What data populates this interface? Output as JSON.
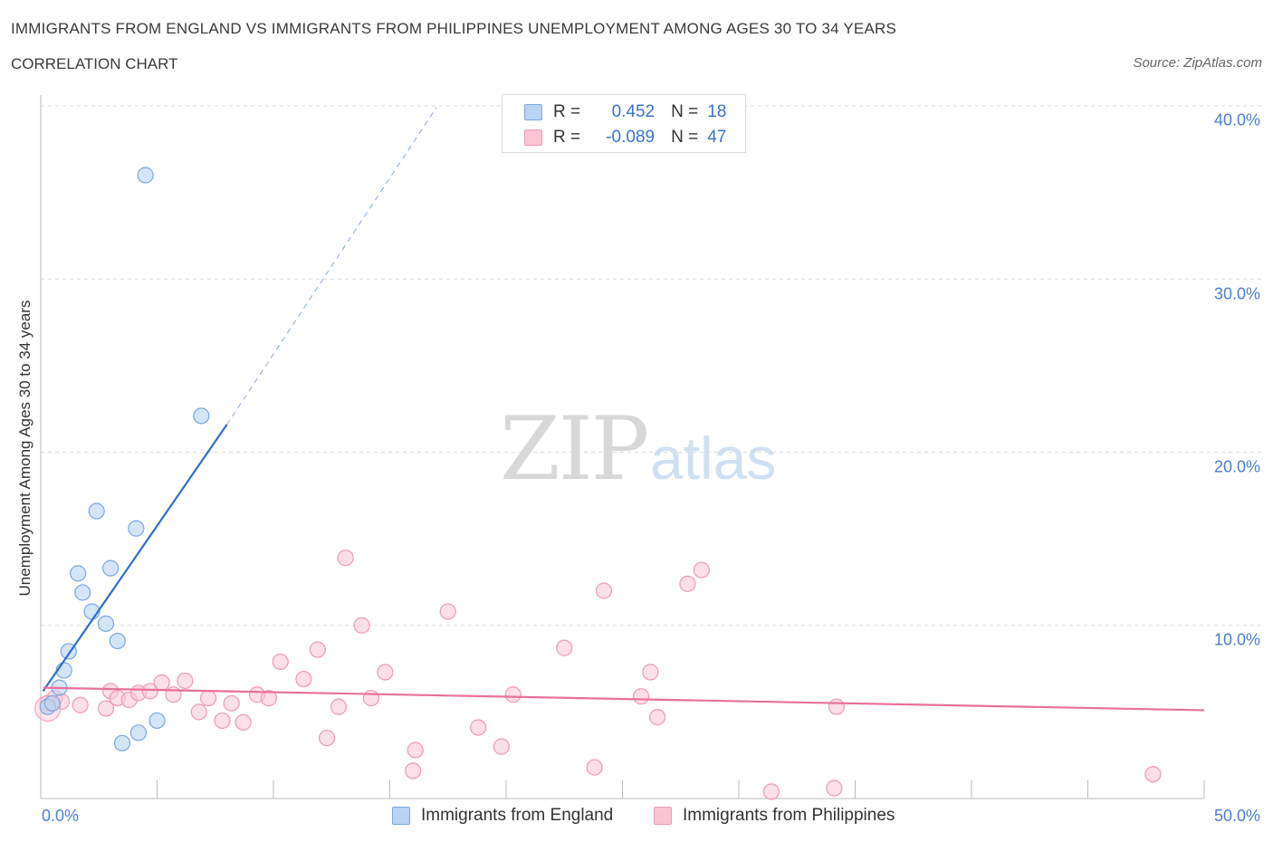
{
  "header": {
    "title": "IMMIGRANTS FROM ENGLAND VS IMMIGRANTS FROM PHILIPPINES UNEMPLOYMENT AMONG AGES 30 TO 34 YEARS",
    "subtitle": "CORRELATION CHART",
    "source": "Source: ZipAtlas.com"
  },
  "watermark": {
    "zip": "ZIP",
    "atlas": "atlas"
  },
  "legend": {
    "england": {
      "r_label": "R =",
      "r_value": "0.452",
      "n_label": "N =",
      "n_value": "18"
    },
    "philippines": {
      "r_label": "R =",
      "r_value": "-0.089",
      "n_label": "N =",
      "n_value": "47"
    }
  },
  "colors": {
    "england_fill": "#b9d3f3",
    "england_stroke": "#7aa7e0",
    "england_line": "#2f6fcf",
    "philippines_fill": "#f9c5d5",
    "philippines_stroke": "#ee9ab4",
    "philippines_line": "#e8709a",
    "grid": "#dcdcdc",
    "tick_text": "#4a7fd0"
  },
  "chart_data": {
    "type": "scatter",
    "title": "IMMIGRANTS FROM ENGLAND VS IMMIGRANTS FROM PHILIPPINES UNEMPLOYMENT AMONG AGES 30 TO 34 YEARS",
    "subtitle": "CORRELATION CHART",
    "xlabel": "",
    "ylabel": "Unemployment Among Ages 30 to 34 years",
    "xlim": [
      0,
      50
    ],
    "ylim": [
      0,
      40
    ],
    "x_tick_labels": [
      "0.0%",
      "50.0%"
    ],
    "y_ticks": [
      10,
      20,
      30,
      40
    ],
    "y_tick_labels": [
      "10.0%",
      "20.0%",
      "30.0%",
      "40.0%"
    ],
    "grid": true,
    "legend_position": "top-center",
    "series": [
      {
        "name": "Immigrants from England",
        "r": 0.452,
        "n": 18,
        "points": [
          [
            0.3,
            5.3
          ],
          [
            0.5,
            5.5
          ],
          [
            0.8,
            6.4
          ],
          [
            1.0,
            7.4
          ],
          [
            1.2,
            8.5
          ],
          [
            1.6,
            13.0
          ],
          [
            1.8,
            11.9
          ],
          [
            2.2,
            10.8
          ],
          [
            2.4,
            16.6
          ],
          [
            2.8,
            10.1
          ],
          [
            3.0,
            13.3
          ],
          [
            3.3,
            9.1
          ],
          [
            3.5,
            3.2
          ],
          [
            4.1,
            15.6
          ],
          [
            4.2,
            3.8
          ],
          [
            4.5,
            36.0
          ],
          [
            5.0,
            4.5
          ],
          [
            6.9,
            22.1
          ]
        ],
        "trend": {
          "x0": 0.1,
          "y0": 6.2,
          "x1": 8.0,
          "y1": 21.6,
          "dash_x1": 17.0,
          "dash_y1": 39.9
        }
      },
      {
        "name": "Immigrants from Philippines",
        "r": -0.089,
        "n": 47,
        "points": [
          [
            0.3,
            5.5
          ],
          [
            0.6,
            5.8
          ],
          [
            0.9,
            5.6
          ],
          [
            1.7,
            5.4
          ],
          [
            2.8,
            5.2
          ],
          [
            3.0,
            6.2
          ],
          [
            3.3,
            5.8
          ],
          [
            3.8,
            5.7
          ],
          [
            4.2,
            6.1
          ],
          [
            4.7,
            6.2
          ],
          [
            5.2,
            6.7
          ],
          [
            5.7,
            6.0
          ],
          [
            6.2,
            6.8
          ],
          [
            6.8,
            5.0
          ],
          [
            7.2,
            5.8
          ],
          [
            7.8,
            4.5
          ],
          [
            8.2,
            5.5
          ],
          [
            8.7,
            4.4
          ],
          [
            9.3,
            6.0
          ],
          [
            9.8,
            5.8
          ],
          [
            10.3,
            7.9
          ],
          [
            11.3,
            6.9
          ],
          [
            11.9,
            8.6
          ],
          [
            12.3,
            3.5
          ],
          [
            12.8,
            5.3
          ],
          [
            13.1,
            13.9
          ],
          [
            13.8,
            10.0
          ],
          [
            14.2,
            5.8
          ],
          [
            14.8,
            7.3
          ],
          [
            16.1,
            2.8
          ],
          [
            16.0,
            1.6
          ],
          [
            17.5,
            10.8
          ],
          [
            18.8,
            4.1
          ],
          [
            19.8,
            3.0
          ],
          [
            20.3,
            6.0
          ],
          [
            22.5,
            8.7
          ],
          [
            23.8,
            1.8
          ],
          [
            24.2,
            12.0
          ],
          [
            25.8,
            5.9
          ],
          [
            26.2,
            7.3
          ],
          [
            26.5,
            4.7
          ],
          [
            27.8,
            12.4
          ],
          [
            28.4,
            13.2
          ],
          [
            31.4,
            0.4
          ],
          [
            34.1,
            0.6
          ],
          [
            34.2,
            5.3
          ],
          [
            47.8,
            1.4
          ]
        ],
        "trend": {
          "x0": 0.1,
          "y0": 6.4,
          "x1": 50.0,
          "y1": 5.1
        }
      }
    ]
  },
  "bottom_legend": {
    "england_label": "Immigrants from England",
    "philippines_label": "Immigrants from Philippines"
  }
}
